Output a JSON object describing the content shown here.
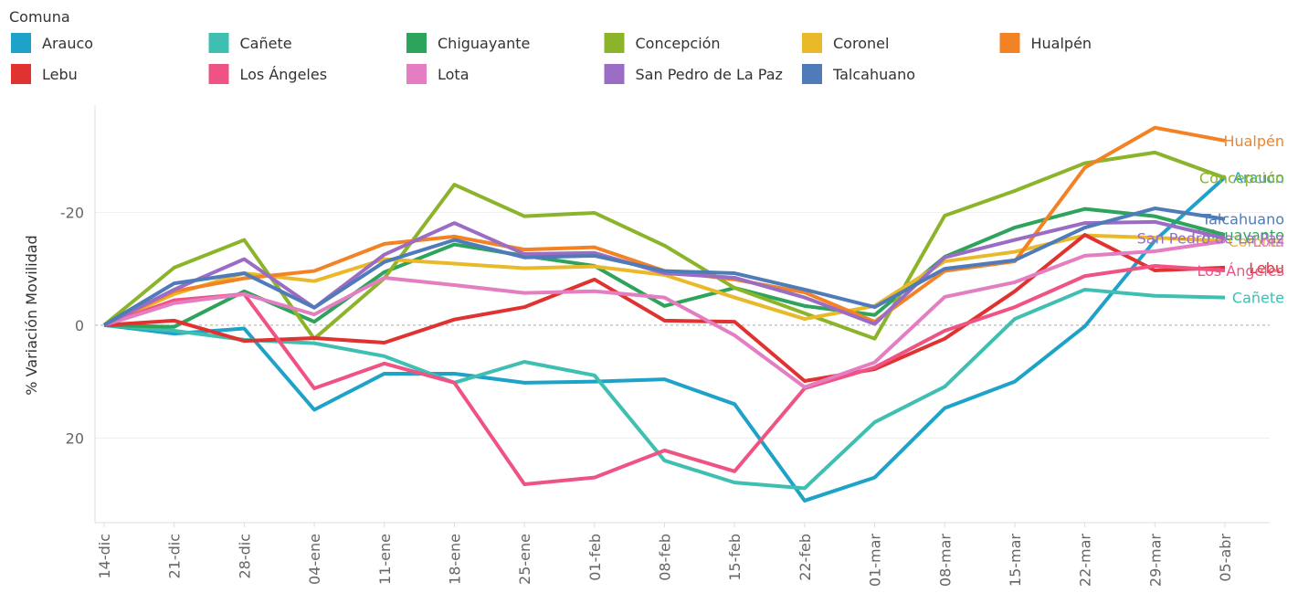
{
  "chart_data": {
    "type": "line",
    "legend_title": "Comuna",
    "y_label": "% Variación Movilidad",
    "categories": [
      "14-dic",
      "21-dic",
      "28-dic",
      "04-ene",
      "11-ene",
      "18-ene",
      "25-ene",
      "01-feb",
      "08-feb",
      "15-feb",
      "22-feb",
      "01-mar",
      "08-mar",
      "15-mar",
      "22-mar",
      "29-mar",
      "05-abr"
    ],
    "ylim": [
      -39,
      35
    ],
    "y_reversed": true,
    "yticks": [
      -20,
      0,
      20
    ],
    "grid": true,
    "legend": "top",
    "end_labels": true,
    "series": [
      {
        "name": "Arauco",
        "color": "#1fa2c8",
        "values": [
          0,
          1.5,
          0.6,
          15,
          8.6,
          8.6,
          10.2,
          10,
          9.6,
          14,
          31.1,
          27,
          14.7,
          10,
          0.2,
          -15,
          -26.2
        ]
      },
      {
        "name": "Cañete",
        "color": "#3ebfb1",
        "values": [
          0,
          1,
          2.6,
          3.2,
          5.5,
          10.2,
          6.5,
          8.9,
          24,
          27.9,
          28.9,
          17.2,
          10.9,
          -1.1,
          -6.3,
          -5.2,
          -4.9
        ]
      },
      {
        "name": "Chiguayante",
        "color": "#2ea35b",
        "values": [
          0,
          0.3,
          -6,
          -0.6,
          -9.4,
          -14.3,
          -12.3,
          -10.5,
          -3.4,
          -6.6,
          -3.4,
          -1.8,
          -12.1,
          -17.3,
          -20.6,
          -19.3,
          -16
        ]
      },
      {
        "name": "Concepción",
        "color": "#8cb42b",
        "values": [
          0,
          -10.2,
          -15.1,
          2.4,
          -8.3,
          -24.9,
          -19.3,
          -19.9,
          -14.1,
          -6.6,
          -2.1,
          2.4,
          -19.4,
          -23.8,
          -28.7,
          -30.6,
          -26.1
        ]
      },
      {
        "name": "Coronel",
        "color": "#e9b92a",
        "values": [
          0,
          -5.5,
          -9.2,
          -7.8,
          -11.7,
          -10.9,
          -10.1,
          -10.4,
          -8.9,
          -4.9,
          -1.1,
          -3.4,
          -11.3,
          -13,
          -15.9,
          -15.5,
          -14.9
        ]
      },
      {
        "name": "Hualpén",
        "color": "#f38225",
        "values": [
          0,
          -6,
          -8.3,
          -9.6,
          -14.4,
          -15.7,
          -13.4,
          -13.8,
          -9.6,
          -8.1,
          -5.8,
          -0.6,
          -9.6,
          -11.3,
          -27.9,
          -35,
          -32.7
        ]
      },
      {
        "name": "Lebu",
        "color": "#e03230",
        "values": [
          0,
          -0.8,
          2.8,
          2.3,
          3.1,
          -1,
          -3.2,
          -8.1,
          -0.8,
          -0.6,
          9.9,
          7.8,
          2.4,
          -6,
          -16,
          -9.7,
          -10.2
        ]
      },
      {
        "name": "Los Ángeles",
        "color": "#ef5383",
        "values": [
          0,
          -4.4,
          -5.5,
          11.2,
          6.8,
          10.2,
          28.2,
          27,
          22.2,
          25.9,
          11.2,
          7.5,
          1,
          -3.2,
          -8.7,
          -10.5,
          -9.7
        ]
      },
      {
        "name": "Lota",
        "color": "#e47dc1",
        "values": [
          0,
          -3.9,
          -5.5,
          -1.9,
          -8.4,
          -7.1,
          -5.7,
          -6,
          -4.9,
          1.8,
          11,
          6.6,
          -5,
          -7.6,
          -12.3,
          -13.1,
          -14.9
        ]
      },
      {
        "name": "San Pedro de La Paz",
        "color": "#9b6cc3",
        "values": [
          0,
          -6.3,
          -11.7,
          -3.1,
          -12.5,
          -18.1,
          -12.6,
          -12.8,
          -9.2,
          -8.4,
          -4.9,
          -0.2,
          -12,
          -15.1,
          -18.1,
          -18.3,
          -15.4
        ]
      },
      {
        "name": "Talcahuano",
        "color": "#4f7bb9",
        "values": [
          0,
          -7.4,
          -9.2,
          -3.1,
          -11.2,
          -15.1,
          -12,
          -12.3,
          -9.6,
          -9.2,
          -6.3,
          -3.2,
          -10,
          -11.5,
          -17.3,
          -20.7,
          -18.8
        ]
      }
    ]
  }
}
